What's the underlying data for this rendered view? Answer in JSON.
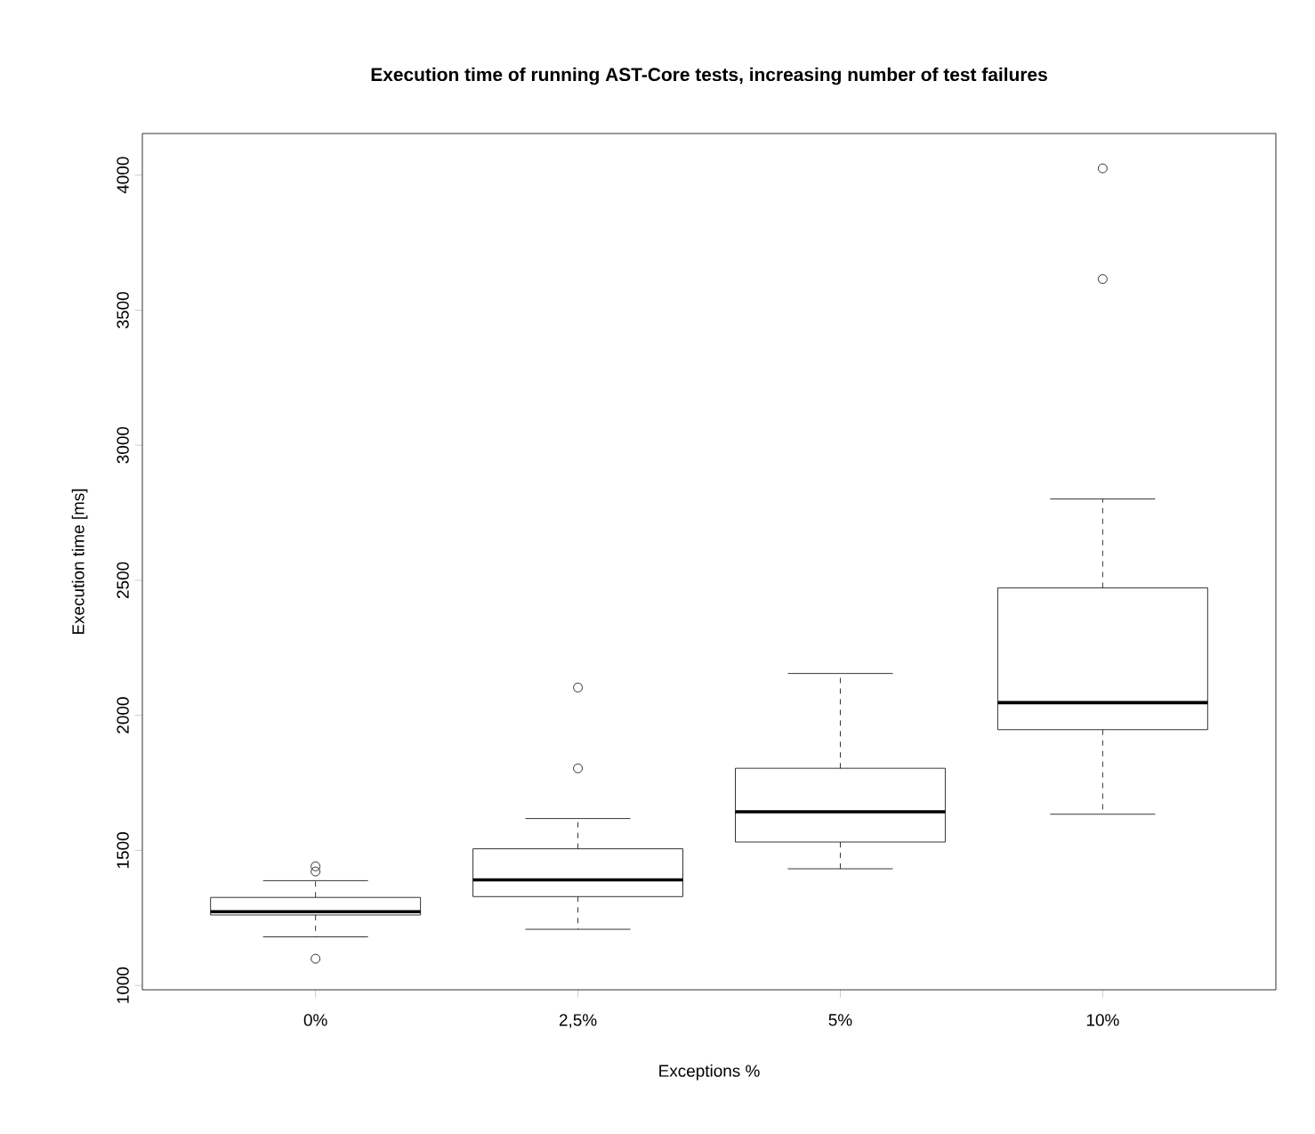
{
  "chart_data": {
    "type": "box",
    "title": "Execution time of running AST-Core tests, increasing number of test failures",
    "xlabel": "Exceptions %",
    "ylabel": "Execution time [ms]",
    "categories": [
      "0%",
      "2,5%",
      "5%",
      "10%"
    ],
    "boxes": [
      {
        "low": 1180,
        "q1": 1261,
        "median": 1273,
        "q3": 1326,
        "high": 1388,
        "outliers": [
          1099,
          1422,
          1441
        ]
      },
      {
        "low": 1208,
        "q1": 1329,
        "median": 1391,
        "q3": 1506,
        "high": 1618,
        "outliers": [
          1804,
          2103
        ]
      },
      {
        "low": 1432,
        "q1": 1531,
        "median": 1643,
        "q3": 1804,
        "high": 2155
      },
      {
        "low": 1634,
        "q1": 1947,
        "median": 2047,
        "q3": 2472,
        "high": 2801,
        "outliers": [
          3615,
          4025
        ]
      }
    ],
    "color": "#000000",
    "ylim": [
      984,
      4154
    ],
    "yticks": [
      1000,
      1500,
      2000,
      2500,
      3000,
      3500,
      4000
    ],
    "grid": false,
    "marker": "circle"
  }
}
